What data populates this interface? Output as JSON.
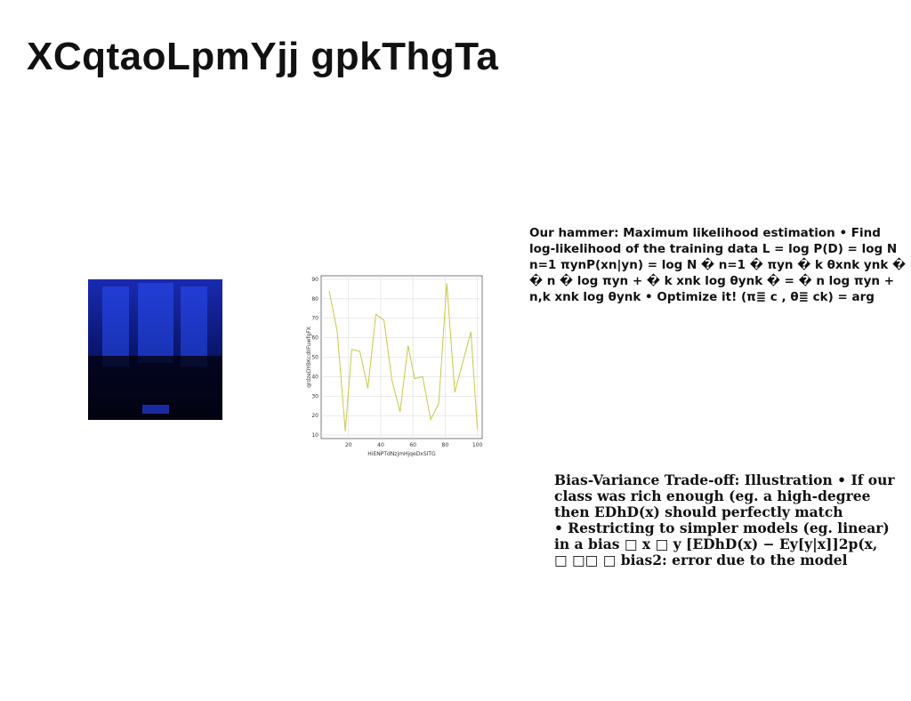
{
  "title": "XCqtaoLpmYjj gpkThgTa",
  "text_block_1": {
    "lines": [
      "Our hammer: Maximum likelihood estimation • Find",
      "log-likelihood of the training data L = log P(D) = log N",
      "n=1 πynP(xn|yn) = log N � n=1 � πyn � k θxnk ynk �",
      "� n � log πyn + � k xnk log θynk � = � n log πyn +",
      "n,k xnk log θynk • Optimize it! (π≣ c , θ≣ ck) = arg"
    ]
  },
  "text_block_2": {
    "lines": [
      "Bias-Variance Trade-off: Illustration • If our",
      "class was rich enough (eg. a high-degree",
      "then EDhD(x) should perfectly match",
      "• Restricting to simpler models (eg. linear)",
      "in a bias □ x □ y [EDhD(x) − Ey[y|x]]2p(x,",
      "□ □□ □ bias2: error due to the model"
    ]
  },
  "chart_data": {
    "type": "line",
    "x_label": "HiENPTdNzjmHjqeDxSITG",
    "y_label": "qrdzeDYBKcdIIFuwfgFX",
    "x": [
      8,
      13,
      18,
      22,
      27,
      32,
      37,
      42,
      47,
      52,
      57,
      61,
      66,
      71,
      76,
      81,
      86,
      96,
      100
    ],
    "values": [
      84,
      63,
      12,
      54,
      53,
      34,
      72,
      69,
      38,
      22,
      56,
      39,
      40,
      18,
      26,
      88,
      32,
      63,
      13
    ],
    "color": "#c8c84a",
    "xlim": [
      3,
      103
    ],
    "xticks": [
      20,
      40,
      60,
      80,
      100
    ],
    "ylim": [
      8.2,
      91.8
    ],
    "yticks": [
      10,
      20,
      30,
      40,
      50,
      60,
      70,
      80,
      90
    ],
    "grid": true
  }
}
